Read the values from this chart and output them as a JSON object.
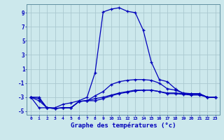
{
  "xlabel": "Graphe des températures (°c)",
  "xlim": [
    -0.5,
    23.5
  ],
  "ylim": [
    -5.5,
    10.2
  ],
  "xticks": [
    0,
    1,
    2,
    3,
    4,
    5,
    6,
    7,
    8,
    9,
    10,
    11,
    12,
    13,
    14,
    15,
    16,
    17,
    18,
    19,
    20,
    21,
    22,
    23
  ],
  "yticks": [
    -5,
    -3,
    -1,
    1,
    3,
    5,
    7,
    9
  ],
  "bg_color": "#cce8ec",
  "grid_color": "#aac8d0",
  "line_color": "#0000bb",
  "line1_x": [
    0,
    1,
    2,
    3,
    4,
    5,
    6,
    7,
    8,
    9,
    10,
    11,
    12,
    13,
    14,
    15,
    16,
    17,
    18,
    19,
    20,
    21,
    22,
    23
  ],
  "line1_y": [
    -3.0,
    -3.2,
    -4.5,
    -4.6,
    -4.5,
    -4.5,
    -3.6,
    -3.5,
    -3.2,
    -3.0,
    -2.7,
    -2.4,
    -2.2,
    -2.0,
    -2.0,
    -2.0,
    -2.2,
    -2.5,
    -2.5,
    -2.6,
    -2.7,
    -2.7,
    -3.0,
    -3.0
  ],
  "line2_x": [
    0,
    1,
    2,
    3,
    4,
    5,
    6,
    7,
    8,
    9,
    10,
    11,
    12,
    13,
    14,
    15,
    16,
    17,
    18,
    19,
    20,
    21,
    22,
    23
  ],
  "line2_y": [
    -3.0,
    -4.5,
    -4.5,
    -4.6,
    -4.5,
    -4.5,
    -3.6,
    -3.5,
    -3.5,
    -3.2,
    -2.8,
    -2.5,
    -2.3,
    -2.1,
    -2.0,
    -2.0,
    -2.2,
    -2.4,
    -2.4,
    -2.5,
    -2.6,
    -2.6,
    -3.0,
    -3.0
  ],
  "line3_x": [
    0,
    1,
    2,
    3,
    4,
    5,
    6,
    7,
    8,
    9,
    10,
    11,
    12,
    13,
    14,
    15,
    16,
    17,
    18,
    19,
    20,
    21,
    22,
    23
  ],
  "line3_y": [
    -3.0,
    -3.5,
    -4.5,
    -4.6,
    -4.5,
    -4.5,
    -3.6,
    -3.5,
    -2.8,
    -2.2,
    -1.2,
    -0.8,
    -0.6,
    -0.5,
    -0.5,
    -0.6,
    -1.0,
    -1.8,
    -2.0,
    -2.4,
    -2.5,
    -2.5,
    -3.0,
    -3.0
  ],
  "line4_x": [
    0,
    1,
    2,
    3,
    4,
    5,
    6,
    7,
    8,
    9,
    10,
    11,
    12,
    13,
    14,
    15,
    16,
    17,
    18,
    19,
    20,
    21,
    22,
    23
  ],
  "line4_y": [
    -3.0,
    -3.0,
    -4.5,
    -4.5,
    -4.0,
    -3.8,
    -3.5,
    -3.0,
    0.5,
    9.1,
    9.5,
    9.7,
    9.2,
    9.0,
    6.5,
    2.0,
    -0.5,
    -0.8,
    -1.8,
    -2.5,
    -2.5,
    -2.5,
    -3.0,
    -3.0
  ]
}
